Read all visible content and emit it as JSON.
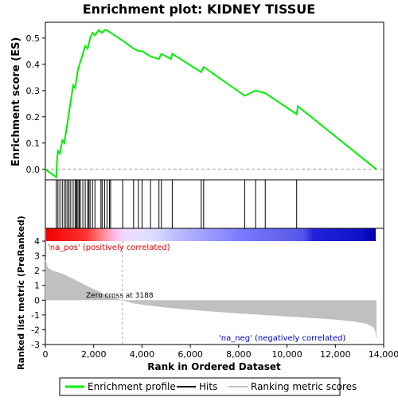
{
  "chart_data": {
    "title": "Enrichment plot: KIDNEY TISSUE",
    "type": "line",
    "x_range": [
      0,
      14000
    ],
    "xlabel": "Rank in Ordered Dataset",
    "x_ticks": [
      "0",
      "2,000",
      "4,000",
      "6,000",
      "8,000",
      "10,000",
      "12,000",
      "14,000"
    ],
    "x_tick_values": [
      0,
      2000,
      4000,
      6000,
      8000,
      10000,
      12000,
      14000
    ],
    "es_panel": {
      "ylabel": "Enrichment score (ES)",
      "ylim": [
        -0.04,
        0.56
      ],
      "y_ticks": [
        "0.0",
        "0.1",
        "0.2",
        "0.3",
        "0.4",
        "0.5"
      ],
      "y_tick_values": [
        0.0,
        0.1,
        0.2,
        0.3,
        0.4,
        0.5
      ],
      "series_color": "#00ee00",
      "profile": {
        "x": [
          0,
          450,
          480,
          520,
          600,
          700,
          780,
          850,
          920,
          980,
          1050,
          1150,
          1230,
          1300,
          1350,
          1450,
          1550,
          1650,
          1750,
          1850,
          1950,
          2050,
          2200,
          2350,
          2450,
          2550,
          2700,
          3200,
          3650,
          3850,
          4000,
          4350,
          4700,
          4800,
          5200,
          5250,
          6450,
          6550,
          8250,
          8700,
          9100,
          10400,
          10450,
          13700
        ],
        "y": [
          0.0,
          -0.03,
          0.03,
          0.07,
          0.06,
          0.11,
          0.1,
          0.14,
          0.18,
          0.22,
          0.26,
          0.32,
          0.31,
          0.35,
          0.38,
          0.41,
          0.44,
          0.47,
          0.46,
          0.5,
          0.52,
          0.51,
          0.53,
          0.52,
          0.53,
          0.53,
          0.52,
          0.49,
          0.46,
          0.45,
          0.45,
          0.43,
          0.42,
          0.44,
          0.42,
          0.44,
          0.37,
          0.39,
          0.28,
          0.3,
          0.29,
          0.21,
          0.24,
          0.0
        ]
      }
    },
    "hits": [
      450,
      520,
      600,
      700,
      780,
      850,
      920,
      980,
      1050,
      1150,
      1230,
      1280,
      1300,
      1350,
      1400,
      1450,
      1550,
      1650,
      1750,
      1800,
      1850,
      1950,
      2050,
      2300,
      2350,
      2450,
      2550,
      2650,
      2700,
      3200,
      3650,
      3850,
      4000,
      4350,
      4700,
      4800,
      5250,
      6450,
      6550,
      8250,
      8700,
      9100,
      10400
    ],
    "ranked_panel": {
      "ylabel": "Ranked list metric (PreRanked)",
      "ylim": [
        -3,
        4
      ],
      "y_ticks": [
        "-3",
        "-2",
        "-1",
        "0",
        "1",
        "2",
        "3",
        "4"
      ],
      "y_tick_values": [
        -3,
        -2,
        -1,
        0,
        1,
        2,
        3,
        4
      ],
      "metric": {
        "x": [
          0,
          100,
          300,
          700,
          1200,
          1800,
          2400,
          2900,
          3188,
          3600,
          4200,
          5000,
          6000,
          7000,
          8000,
          9000,
          10000,
          11000,
          12000,
          12800,
          13300,
          13550,
          13650,
          13700
        ],
        "y": [
          2.8,
          2.2,
          2.0,
          1.8,
          1.4,
          0.9,
          0.45,
          0.15,
          0.0,
          -0.2,
          -0.35,
          -0.5,
          -0.65,
          -0.78,
          -0.9,
          -1.0,
          -1.1,
          -1.2,
          -1.32,
          -1.45,
          -1.6,
          -1.8,
          -2.1,
          -2.7
        ]
      },
      "zero_cross_label": "Zero cross at 3188",
      "zero_cross_x": 3188,
      "pos_label": "'na_pos' (positively correlated)",
      "neg_label": "'na_neg' (negatively correlated)"
    },
    "colors": {
      "pos_label": "#dd0000",
      "neg_label": "#0000cc",
      "metric_fill": "#c0c0c0",
      "hits": "#000000"
    },
    "legend": {
      "placement": "bottom",
      "items": [
        {
          "label": "Enrichment profile",
          "color": "#00ee00",
          "style": "line"
        },
        {
          "label": "Hits",
          "color": "#000000",
          "style": "line"
        },
        {
          "label": "Ranking metric scores",
          "color": "#c0c0c0",
          "style": "line"
        }
      ]
    }
  }
}
